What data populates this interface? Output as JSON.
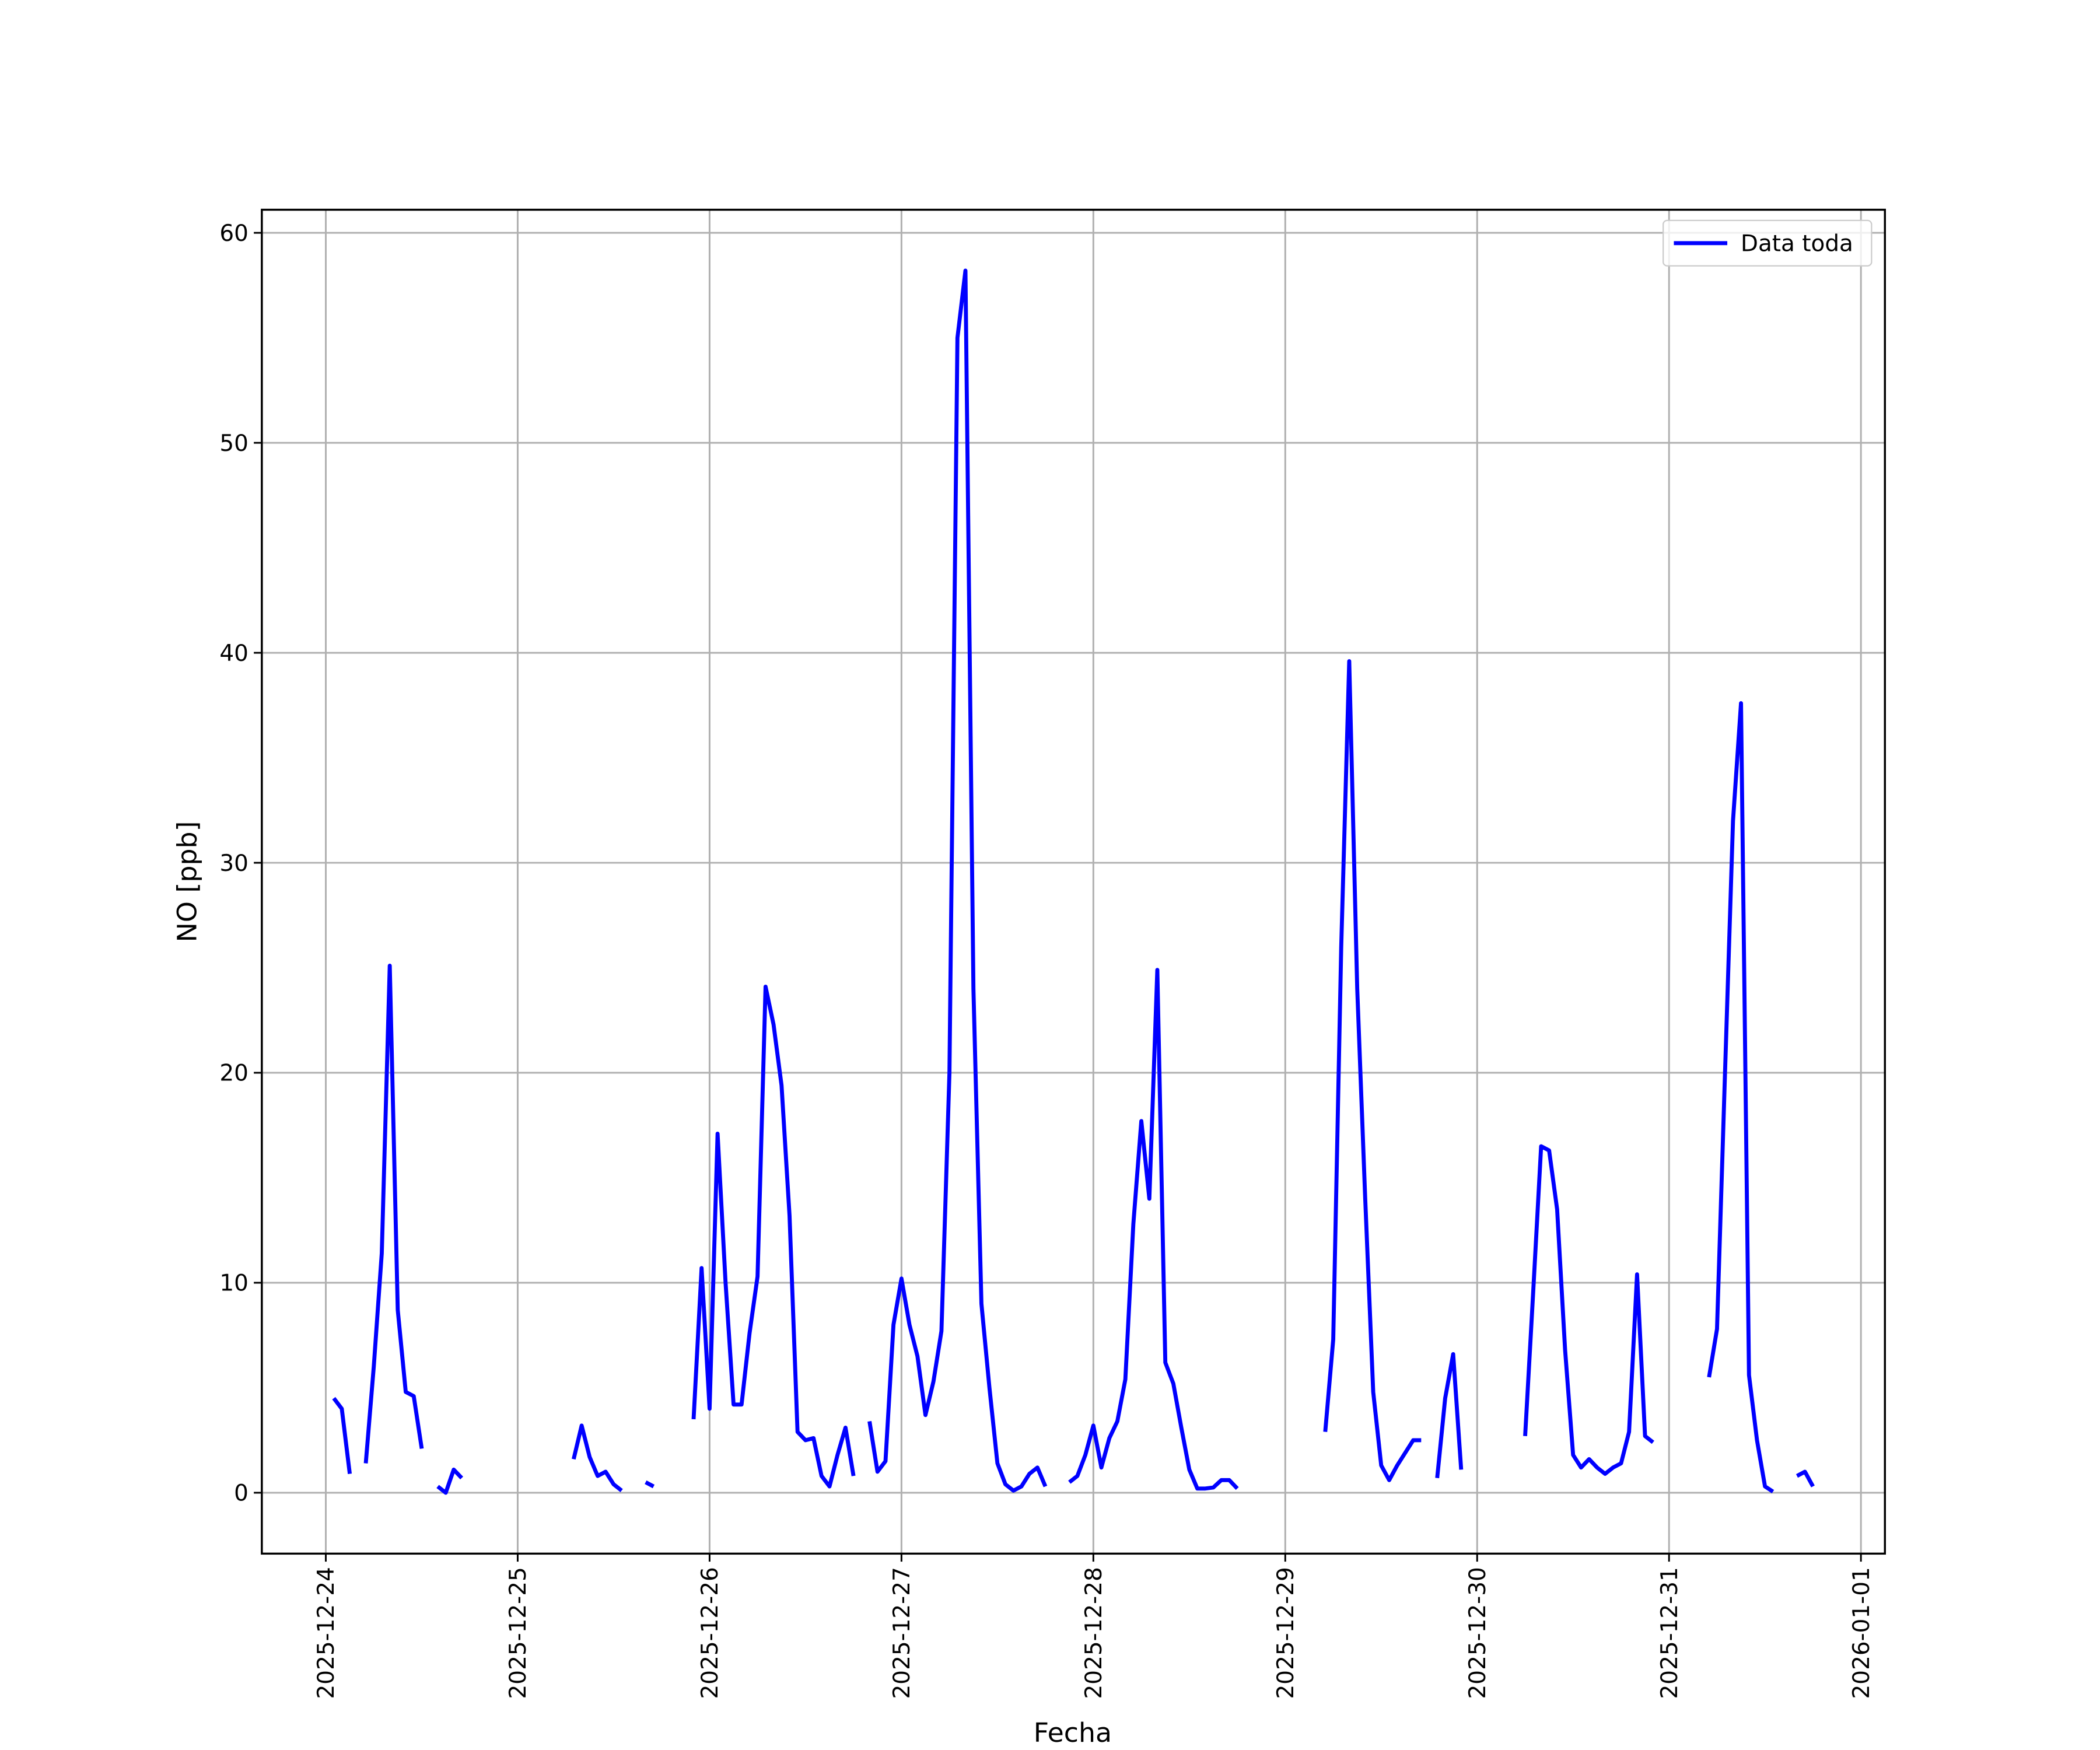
{
  "chart_data": {
    "type": "line",
    "xlabel": "Fecha",
    "ylabel": "NO [ppb]",
    "x": [
      "2025-12-24 01:00",
      "2025-12-24 02:00",
      "2025-12-24 03:00",
      "2025-12-24 04:00",
      "2025-12-24 05:00",
      "2025-12-24 06:00",
      "2025-12-24 07:00",
      "2025-12-24 08:00",
      "2025-12-24 09:00",
      "2025-12-24 10:00",
      "2025-12-24 11:00",
      "2025-12-24 12:00",
      "2025-12-24 13:00",
      "2025-12-24 14:00",
      "2025-12-24 15:00",
      "2025-12-24 16:00",
      "2025-12-24 17:00",
      "2025-12-24 18:00",
      "2025-12-25 07:00",
      "2025-12-25 08:00",
      "2025-12-25 09:00",
      "2025-12-25 10:00",
      "2025-12-25 11:00",
      "2025-12-25 12:00",
      "2025-12-25 13:00",
      "2025-12-25 14:00",
      "2025-12-25 16:00",
      "2025-12-25 17:00",
      "2025-12-25 18:00",
      "2025-12-25 22:00",
      "2025-12-25 23:00",
      "2025-12-26 00:00",
      "2025-12-26 01:00",
      "2025-12-26 02:00",
      "2025-12-26 03:00",
      "2025-12-26 04:00",
      "2025-12-26 05:00",
      "2025-12-26 06:00",
      "2025-12-26 07:00",
      "2025-12-26 08:00",
      "2025-12-26 09:00",
      "2025-12-26 10:00",
      "2025-12-26 11:00",
      "2025-12-26 12:00",
      "2025-12-26 13:00",
      "2025-12-26 14:00",
      "2025-12-26 15:00",
      "2025-12-26 16:00",
      "2025-12-26 17:00",
      "2025-12-26 18:00",
      "2025-12-26 19:00",
      "2025-12-26 20:00",
      "2025-12-26 21:00",
      "2025-12-26 22:00",
      "2025-12-26 23:00",
      "2025-12-27 00:00",
      "2025-12-27 01:00",
      "2025-12-27 02:00",
      "2025-12-27 03:00",
      "2025-12-27 04:00",
      "2025-12-27 05:00",
      "2025-12-27 06:00",
      "2025-12-27 07:00",
      "2025-12-27 08:00",
      "2025-12-27 09:00",
      "2025-12-27 10:00",
      "2025-12-27 11:00",
      "2025-12-27 12:00",
      "2025-12-27 13:00",
      "2025-12-27 14:00",
      "2025-12-27 15:00",
      "2025-12-27 16:00",
      "2025-12-27 17:00",
      "2025-12-27 18:00",
      "2025-12-27 19:00",
      "2025-12-27 21:00",
      "2025-12-27 22:00",
      "2025-12-27 23:00",
      "2025-12-28 00:00",
      "2025-12-28 01:00",
      "2025-12-28 02:00",
      "2025-12-28 03:00",
      "2025-12-28 04:00",
      "2025-12-28 05:00",
      "2025-12-28 06:00",
      "2025-12-28 07:00",
      "2025-12-28 08:00",
      "2025-12-28 09:00",
      "2025-12-28 10:00",
      "2025-12-28 11:00",
      "2025-12-28 12:00",
      "2025-12-28 13:00",
      "2025-12-28 14:00",
      "2025-12-28 15:00",
      "2025-12-28 16:00",
      "2025-12-28 17:00",
      "2025-12-28 18:00",
      "2025-12-28 19:00",
      "2025-12-29 05:00",
      "2025-12-29 06:00",
      "2025-12-29 07:00",
      "2025-12-29 08:00",
      "2025-12-29 09:00",
      "2025-12-29 10:00",
      "2025-12-29 11:00",
      "2025-12-29 12:00",
      "2025-12-29 13:00",
      "2025-12-29 14:00",
      "2025-12-29 15:00",
      "2025-12-29 16:00",
      "2025-12-29 17:00",
      "2025-12-29 18:00",
      "2025-12-29 19:00",
      "2025-12-29 20:00",
      "2025-12-29 21:00",
      "2025-12-29 22:00",
      "2025-12-29 23:00",
      "2025-12-30 06:00",
      "2025-12-30 07:00",
      "2025-12-30 08:00",
      "2025-12-30 09:00",
      "2025-12-30 10:00",
      "2025-12-30 11:00",
      "2025-12-30 12:00",
      "2025-12-30 13:00",
      "2025-12-30 14:00",
      "2025-12-30 15:00",
      "2025-12-30 16:00",
      "2025-12-30 17:00",
      "2025-12-30 18:00",
      "2025-12-30 19:00",
      "2025-12-30 20:00",
      "2025-12-30 21:00",
      "2025-12-30 22:00",
      "2025-12-30 23:00",
      "2025-12-31 05:00",
      "2025-12-31 06:00",
      "2025-12-31 07:00",
      "2025-12-31 08:00",
      "2025-12-31 09:00",
      "2025-12-31 10:00",
      "2025-12-31 11:00",
      "2025-12-31 12:00",
      "2025-12-31 13:00",
      "2025-12-31 14:00",
      "2025-12-31 16:00",
      "2025-12-31 17:00",
      "2025-12-31 18:00"
    ],
    "series": [
      {
        "name": "Data toda",
        "color": "#0000ff",
        "values": [
          4.5,
          4.0,
          0.9,
          null,
          1.4,
          6,
          11.4,
          25.1,
          8.7,
          4.8,
          4.6,
          2.1,
          null,
          0.3,
          0.0,
          1.1,
          0.7,
          null,
          1.6,
          3.2,
          1.7,
          0.8,
          1.0,
          0.4,
          0.1,
          null,
          0.5,
          0.3,
          null,
          3.5,
          10.7,
          4.0,
          17.1,
          10,
          4.2,
          4.2,
          7.6,
          10.3,
          24.1,
          22.3,
          19.4,
          13.2,
          2.9,
          2.5,
          2.6,
          0.8,
          0.3,
          1.8,
          3.1,
          0.8,
          null,
          3.4,
          1.0,
          1.5,
          8.0,
          10.2,
          8.0,
          6.5,
          3.7,
          5.3,
          7.7,
          20,
          55,
          58.2,
          24,
          9,
          5,
          1.4,
          0.4,
          0.1,
          0.3,
          0.9,
          1.2,
          0.3,
          null,
          0.5,
          0.8,
          1.8,
          3.2,
          1.2,
          2.6,
          3.4,
          5.4,
          12.8,
          17.7,
          14.0,
          24.9,
          6.2,
          5.2,
          3.1,
          1.1,
          0.2,
          0.2,
          0.25,
          0.6,
          0.6,
          0.2,
          null,
          2.9,
          7.3,
          26,
          39.6,
          24,
          14,
          4.8,
          1.3,
          0.6,
          1.3,
          1.9,
          2.5,
          2.5,
          null,
          0.7,
          4.5,
          6.6,
          1.1,
          null,
          2.7,
          9.5,
          16.5,
          16.3,
          13.5,
          6.8,
          1.8,
          1.2,
          1.6,
          1.2,
          0.9,
          1.2,
          1.4,
          2.9,
          10.4,
          2.7,
          2.4,
          null,
          5.5,
          7.8,
          20,
          32,
          37.6,
          5.6,
          2.5,
          0.3,
          0.05,
          null,
          0.8,
          1.0,
          0.3
        ]
      }
    ],
    "xlim": [
      "2025-12-23 16:00",
      "2026-01-01 03:00"
    ],
    "xticks": [
      "2025-12-24",
      "2025-12-25",
      "2025-12-26",
      "2025-12-27",
      "2025-12-28",
      "2025-12-29",
      "2025-12-30",
      "2025-12-31",
      "2026-01-01"
    ],
    "ylim": [
      -2.9,
      61.1
    ],
    "yticks": [
      0,
      10,
      20,
      30,
      40,
      50,
      60
    ],
    "grid": true,
    "legend": "upper right"
  }
}
